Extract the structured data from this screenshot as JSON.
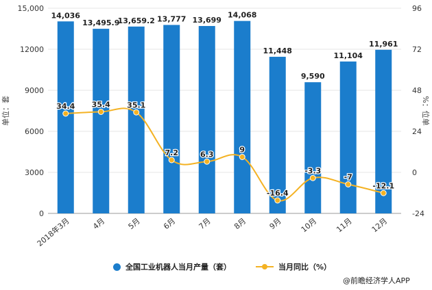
{
  "chart_data": {
    "type": "bar",
    "categories": [
      "2018年3月",
      "4月",
      "5月",
      "6月",
      "7月",
      "8月",
      "9月",
      "10月",
      "11月",
      "12月"
    ],
    "series": [
      {
        "name": "全国工业机器人当月产量（套）",
        "type": "bar",
        "axis": "left",
        "color": "#1b7dcc",
        "values": [
          14036,
          13495.9,
          13659.2,
          13777,
          13699,
          14068,
          11448,
          9590,
          11104,
          11961
        ],
        "labels": [
          "14,036",
          "13,495.9",
          "13,659.2",
          "13,777",
          "13,699",
          "14,068",
          "11,448",
          "9,590",
          "11,104",
          "11,961"
        ]
      },
      {
        "name": "当月同比（%）",
        "type": "line",
        "axis": "right",
        "color": "#f4b223",
        "values": [
          34.4,
          35.4,
          35.1,
          7.2,
          6.3,
          9,
          -16.4,
          -3.3,
          -7,
          -12.1
        ],
        "labels": [
          "34.4",
          "35.4",
          "35.1",
          "7.2",
          "6.3",
          "9",
          "-16.4",
          "-3.3",
          "-7",
          "-12.1"
        ]
      }
    ],
    "ylabel": "单位：套",
    "y2label": "%：位单",
    "ylim": [
      0,
      15000
    ],
    "y2lim": [
      -24,
      96
    ],
    "yticks": [
      "0",
      "3000",
      "6000",
      "9000",
      "12000",
      "15,000"
    ],
    "y2ticks": [
      "-24",
      "0",
      "24",
      "48",
      "72",
      "96"
    ],
    "legend_position": "bottom"
  },
  "source": "@前瞻经济学人APP"
}
